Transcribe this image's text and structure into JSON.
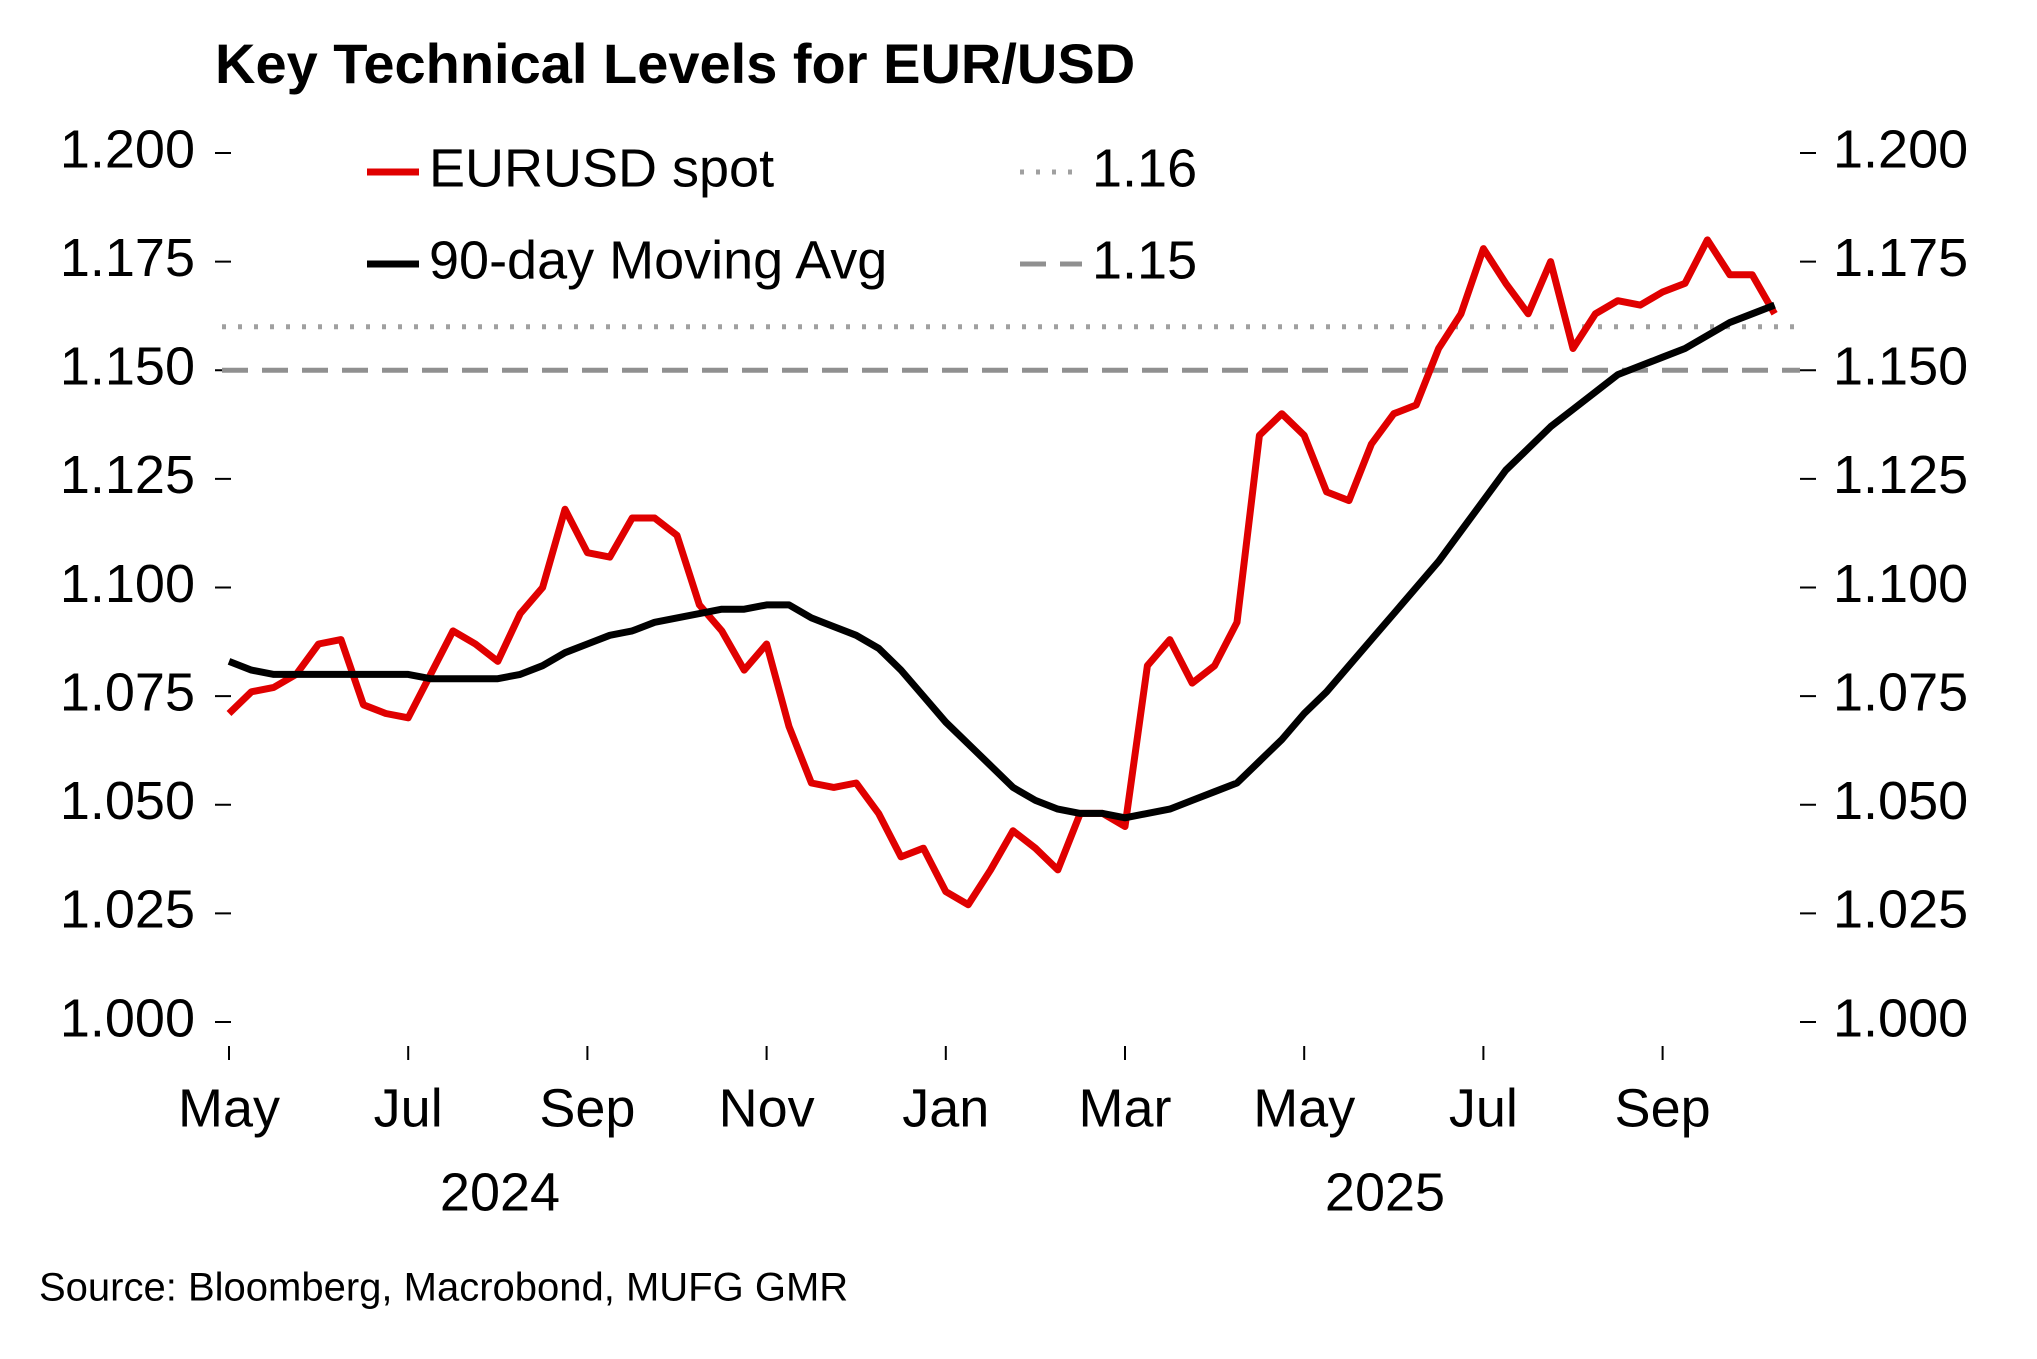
{
  "chart_data": {
    "type": "line",
    "title": "Key Technical Levels for EUR/USD",
    "source": "Source: Bloomberg, Macrobond, MUFG GMR",
    "categories": [
      "May",
      null,
      null,
      null,
      null,
      null,
      null,
      null,
      "Jul",
      null,
      null,
      null,
      null,
      null,
      null,
      null,
      "Sep",
      null,
      null,
      null,
      null,
      null,
      null,
      null,
      "Nov",
      null,
      null,
      null,
      null,
      null,
      null,
      null,
      "Jan",
      null,
      null,
      null,
      null,
      null,
      null,
      null,
      "Mar",
      null,
      null,
      null,
      null,
      null,
      null,
      null,
      "May",
      null,
      null,
      null,
      null,
      null,
      null,
      null,
      "Jul",
      null,
      null,
      null,
      null,
      null,
      null,
      null,
      "Sep",
      null,
      null,
      null,
      null,
      null
    ],
    "x_group_labels": [
      "2024",
      "2025"
    ],
    "series": [
      {
        "name": "EURUSD spot",
        "color": "#e00000",
        "values": [
          1.071,
          1.076,
          1.077,
          1.08,
          1.087,
          1.088,
          1.073,
          1.071,
          1.07,
          1.08,
          1.09,
          1.087,
          1.083,
          1.094,
          1.1,
          1.118,
          1.108,
          1.107,
          1.116,
          1.116,
          1.112,
          1.096,
          1.09,
          1.081,
          1.087,
          1.068,
          1.055,
          1.054,
          1.055,
          1.048,
          1.038,
          1.04,
          1.03,
          1.027,
          1.035,
          1.044,
          1.04,
          1.035,
          1.048,
          1.048,
          1.045,
          1.082,
          1.088,
          1.078,
          1.082,
          1.092,
          1.135,
          1.14,
          1.135,
          1.122,
          1.12,
          1.133,
          1.14,
          1.142,
          1.155,
          1.163,
          1.178,
          1.17,
          1.163,
          1.175,
          1.155,
          1.163,
          1.166,
          1.165,
          1.168,
          1.17,
          1.18,
          1.172,
          1.172,
          1.163
        ]
      },
      {
        "name": "90-day Moving Avg",
        "color": "#000000",
        "values": [
          1.083,
          1.081,
          1.08,
          1.08,
          1.08,
          1.08,
          1.08,
          1.08,
          1.08,
          1.079,
          1.079,
          1.079,
          1.079,
          1.08,
          1.082,
          1.085,
          1.087,
          1.089,
          1.09,
          1.092,
          1.093,
          1.094,
          1.095,
          1.095,
          1.096,
          1.096,
          1.093,
          1.091,
          1.089,
          1.086,
          1.081,
          1.075,
          1.069,
          1.064,
          1.059,
          1.054,
          1.051,
          1.049,
          1.048,
          1.048,
          1.047,
          1.048,
          1.049,
          1.051,
          1.053,
          1.055,
          1.06,
          1.065,
          1.071,
          1.076,
          1.082,
          1.088,
          1.094,
          1.1,
          1.106,
          1.113,
          1.12,
          1.127,
          1.132,
          1.137,
          1.141,
          1.145,
          1.149,
          1.151,
          1.153,
          1.155,
          1.158,
          1.161,
          1.163,
          1.165
        ]
      }
    ],
    "reference_lines": [
      {
        "name": "1.16",
        "value": 1.16,
        "style": "dotted",
        "color": "#a0a0a0"
      },
      {
        "name": "1.15",
        "value": 1.15,
        "style": "dashed",
        "color": "#909090"
      }
    ],
    "ylim": [
      1.0,
      1.2
    ],
    "yticks": [
      {
        "value": 1.0,
        "label": "1.000"
      },
      {
        "value": 1.025,
        "label": "1.025"
      },
      {
        "value": 1.05,
        "label": "1.050"
      },
      {
        "value": 1.075,
        "label": "1.075"
      },
      {
        "value": 1.1,
        "label": "1.100"
      },
      {
        "value": 1.125,
        "label": "1.125"
      },
      {
        "value": 1.15,
        "label": "1.150"
      },
      {
        "value": 1.175,
        "label": "1.175"
      },
      {
        "value": 1.2,
        "label": "1.200"
      }
    ],
    "y2lim": [
      1.0,
      1.2
    ],
    "y2ticks": [
      {
        "value": 1.0,
        "label": "1.000"
      },
      {
        "value": 1.025,
        "label": "1.025"
      },
      {
        "value": 1.05,
        "label": "1.050"
      },
      {
        "value": 1.075,
        "label": "1.075"
      },
      {
        "value": 1.1,
        "label": "1.100"
      },
      {
        "value": 1.125,
        "label": "1.125"
      },
      {
        "value": 1.15,
        "label": "1.150"
      },
      {
        "value": 1.175,
        "label": "1.175"
      },
      {
        "value": 1.2,
        "label": "1.200"
      }
    ],
    "grid": false
  }
}
